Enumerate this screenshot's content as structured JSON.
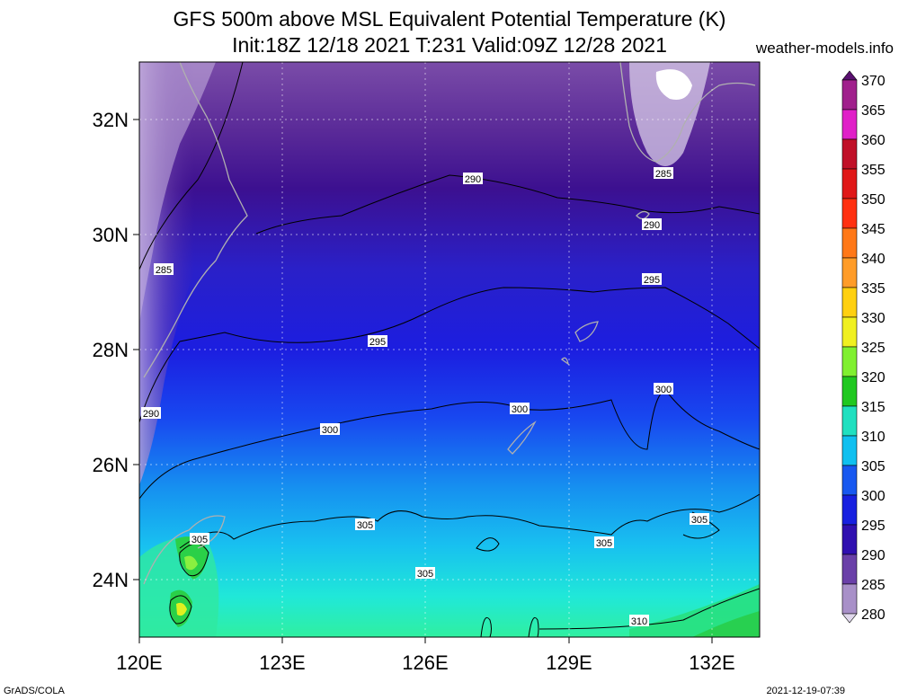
{
  "title_line1": "GFS 500m above MSL Equivalent Potential Temperature (K)",
  "title_line2": "Init:18Z 12/18 2021 T:231 Valid:09Z 12/28 2021",
  "site": "weather-models.info",
  "footer_left": "GrADS/COLA",
  "footer_right": "2021-12-19-07:39",
  "x_ticks": [
    "120E",
    "123E",
    "126E",
    "129E",
    "132E"
  ],
  "y_ticks": [
    "32N",
    "30N",
    "28N",
    "26N",
    "24N"
  ],
  "colorbar": {
    "labels": [
      "370",
      "365",
      "360",
      "355",
      "350",
      "345",
      "340",
      "335",
      "330",
      "325",
      "320",
      "315",
      "310",
      "305",
      "300",
      "295",
      "290",
      "285",
      "280"
    ],
    "colors": [
      "#5a1070",
      "#a0208c",
      "#e020c8",
      "#c01028",
      "#e01818",
      "#ff3010",
      "#ff7818",
      "#ff9c28",
      "#ffd010",
      "#f0f020",
      "#80f030",
      "#20c820",
      "#20e0c0",
      "#10c0f0",
      "#1858f0",
      "#1820e0",
      "#3010b0",
      "#6a40a8",
      "#a890c8",
      "#e0d8ec"
    ]
  },
  "contour_labels": [
    "285",
    "285",
    "290",
    "290",
    "290",
    "295",
    "295",
    "300",
    "300",
    "300",
    "305",
    "305",
    "305",
    "305",
    "305",
    "310"
  ]
}
